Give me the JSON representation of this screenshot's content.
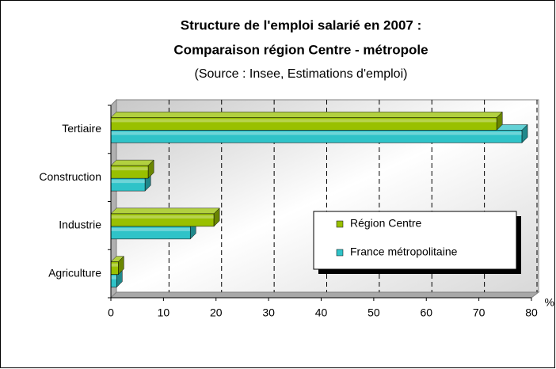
{
  "chart_data": {
    "type": "bar",
    "orientation": "horizontal",
    "title": [
      "Structure de l'emploi salarié en 2007 :",
      "Comparaison région Centre - métropole"
    ],
    "subtitle": "(Source : Insee, Estimations d'emploi)",
    "x_unit": "%",
    "categories": [
      "Tertiaire",
      "Construction",
      "Industrie",
      "Agriculture"
    ],
    "series": [
      {
        "name": "Région Centre",
        "color": "#99c000",
        "values": [
          73.4,
          7.1,
          19.6,
          1.4
        ]
      },
      {
        "name": "France métropolitaine",
        "color": "#2fc3c8",
        "values": [
          78.2,
          6.5,
          15.1,
          1.1
        ]
      }
    ],
    "xlim": [
      0,
      80
    ],
    "xticks": [
      0,
      10,
      20,
      30,
      40,
      50,
      60,
      70,
      80
    ],
    "grid": true,
    "legend": "lower right"
  }
}
